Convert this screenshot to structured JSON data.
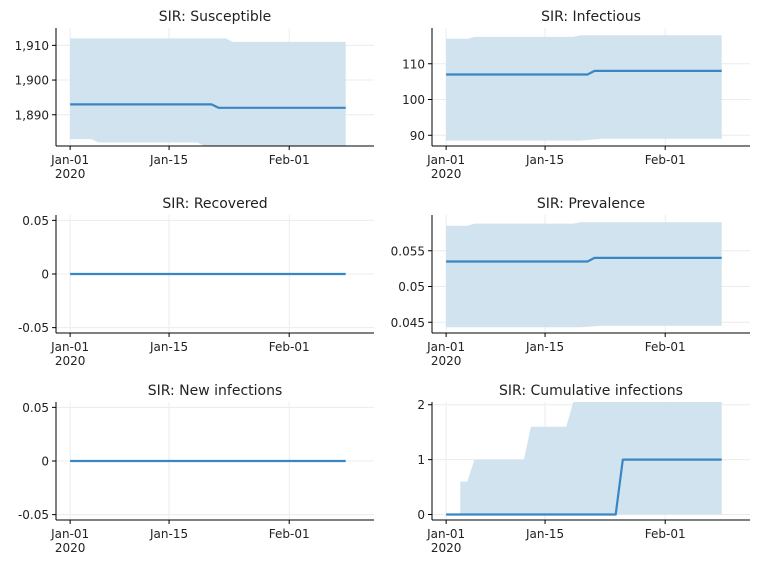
{
  "chart_data": [
    {
      "type": "line",
      "title": "SIR: Susceptible",
      "x_tick_labels": [
        [
          "Jan-01",
          "2020"
        ],
        [
          "Jan-15",
          ""
        ],
        [
          "Feb-01",
          ""
        ]
      ],
      "y_tick_labels": [
        "1,890",
        "1,900",
        "1,910"
      ],
      "y_ticks": [
        1890,
        1900,
        1910
      ],
      "ylim": [
        1881,
        1915
      ],
      "xlim": [
        "2019-12-30",
        "2020-02-13"
      ],
      "grid": true,
      "series": [
        {
          "kind": "line",
          "color": "#3a86c2",
          "x": [
            "2020-01-01",
            "2020-01-21",
            "2020-01-22",
            "2020-02-09"
          ],
          "y": [
            1893,
            1893,
            1892,
            1892
          ]
        },
        {
          "kind": "band",
          "color": "#cfe1ee",
          "x": [
            "2020-01-01",
            "2020-01-04",
            "2020-01-05",
            "2020-01-19",
            "2020-01-20",
            "2020-01-23",
            "2020-01-24",
            "2020-02-09"
          ],
          "upper": [
            1912,
            1912,
            1912,
            1912,
            1912,
            1912,
            1911,
            1911
          ],
          "lower": [
            1883,
            1883,
            1882,
            1882,
            1881,
            1881,
            1881,
            1881
          ]
        }
      ]
    },
    {
      "type": "line",
      "title": "SIR: Infectious",
      "x_tick_labels": [
        [
          "Jan-01",
          "2020"
        ],
        [
          "Jan-15",
          ""
        ],
        [
          "Feb-01",
          ""
        ]
      ],
      "y_tick_labels": [
        "90",
        "100",
        "110"
      ],
      "y_ticks": [
        90,
        100,
        110
      ],
      "ylim": [
        87,
        120
      ],
      "xlim": [
        "2019-12-30",
        "2020-02-13"
      ],
      "grid": true,
      "series": [
        {
          "kind": "line",
          "color": "#3a86c2",
          "x": [
            "2020-01-01",
            "2020-01-21",
            "2020-01-22",
            "2020-02-09"
          ],
          "y": [
            107,
            107,
            108,
            108
          ]
        },
        {
          "kind": "band",
          "color": "#cfe1ee",
          "x": [
            "2020-01-01",
            "2020-01-04",
            "2020-01-05",
            "2020-01-19",
            "2020-01-20",
            "2020-01-23",
            "2020-01-24",
            "2020-02-09"
          ],
          "upper": [
            117,
            117,
            117.5,
            117.5,
            118,
            118,
            118,
            118
          ],
          "lower": [
            88.5,
            88.5,
            88.5,
            88.5,
            88.5,
            89,
            89,
            89
          ]
        }
      ]
    },
    {
      "type": "line",
      "title": "SIR: Recovered",
      "x_tick_labels": [
        [
          "Jan-01",
          "2020"
        ],
        [
          "Jan-15",
          ""
        ],
        [
          "Feb-01",
          ""
        ]
      ],
      "y_tick_labels": [
        "-0.05",
        "0",
        "0.05"
      ],
      "y_ticks": [
        -0.05,
        0,
        0.05
      ],
      "ylim": [
        -0.055,
        0.055
      ],
      "xlim": [
        "2019-12-30",
        "2020-02-13"
      ],
      "grid": true,
      "series": [
        {
          "kind": "line",
          "color": "#3a86c2",
          "x": [
            "2020-01-01",
            "2020-02-09"
          ],
          "y": [
            0,
            0
          ]
        }
      ]
    },
    {
      "type": "line",
      "title": "SIR: Prevalence",
      "x_tick_labels": [
        [
          "Jan-01",
          "2020"
        ],
        [
          "Jan-15",
          ""
        ],
        [
          "Feb-01",
          ""
        ]
      ],
      "y_tick_labels": [
        "0.045",
        "0.05",
        "0.055"
      ],
      "y_ticks": [
        0.045,
        0.05,
        0.055
      ],
      "ylim": [
        0.0435,
        0.06
      ],
      "xlim": [
        "2019-12-30",
        "2020-02-13"
      ],
      "grid": true,
      "series": [
        {
          "kind": "line",
          "color": "#3a86c2",
          "x": [
            "2020-01-01",
            "2020-01-21",
            "2020-01-22",
            "2020-02-09"
          ],
          "y": [
            0.0535,
            0.0535,
            0.054,
            0.054
          ]
        },
        {
          "kind": "band",
          "color": "#cfe1ee",
          "x": [
            "2020-01-01",
            "2020-01-04",
            "2020-01-05",
            "2020-01-19",
            "2020-01-20",
            "2020-01-23",
            "2020-01-24",
            "2020-02-09"
          ],
          "upper": [
            0.0585,
            0.0585,
            0.0588,
            0.0588,
            0.059,
            0.059,
            0.059,
            0.059
          ],
          "lower": [
            0.0443,
            0.0443,
            0.0443,
            0.0443,
            0.0443,
            0.0445,
            0.0445,
            0.0445
          ]
        }
      ]
    },
    {
      "type": "line",
      "title": "SIR: New infections",
      "x_tick_labels": [
        [
          "Jan-01",
          "2020"
        ],
        [
          "Jan-15",
          ""
        ],
        [
          "Feb-01",
          ""
        ]
      ],
      "y_tick_labels": [
        "-0.05",
        "0",
        "0.05"
      ],
      "y_ticks": [
        -0.05,
        0,
        0.05
      ],
      "ylim": [
        -0.055,
        0.055
      ],
      "xlim": [
        "2019-12-30",
        "2020-02-13"
      ],
      "grid": true,
      "series": [
        {
          "kind": "line",
          "color": "#3a86c2",
          "x": [
            "2020-01-01",
            "2020-02-09"
          ],
          "y": [
            0,
            0
          ]
        }
      ]
    },
    {
      "type": "line",
      "title": "SIR: Cumulative infections",
      "x_tick_labels": [
        [
          "Jan-01",
          "2020"
        ],
        [
          "Jan-15",
          ""
        ],
        [
          "Feb-01",
          ""
        ]
      ],
      "y_tick_labels": [
        "0",
        "1",
        "2"
      ],
      "y_ticks": [
        0,
        1,
        2
      ],
      "ylim": [
        -0.1,
        2.05
      ],
      "xlim": [
        "2019-12-30",
        "2020-02-13"
      ],
      "grid": true,
      "series": [
        {
          "kind": "line",
          "color": "#3a86c2",
          "x": [
            "2020-01-01",
            "2020-01-25",
            "2020-01-26",
            "2020-02-09"
          ],
          "y": [
            0,
            0,
            1,
            1
          ]
        },
        {
          "kind": "band",
          "color": "#cfe1ee",
          "x": [
            "2020-01-01",
            "2020-01-03",
            "2020-01-03",
            "2020-01-04",
            "2020-01-05",
            "2020-01-12",
            "2020-01-13",
            "2020-01-18",
            "2020-01-19",
            "2020-02-09"
          ],
          "upper": [
            0,
            0,
            0.6,
            0.6,
            1,
            1,
            1.6,
            1.6,
            2.05,
            2.05
          ],
          "lower": [
            0,
            0,
            0,
            0,
            0,
            0,
            0,
            0,
            0,
            0
          ]
        }
      ]
    }
  ]
}
